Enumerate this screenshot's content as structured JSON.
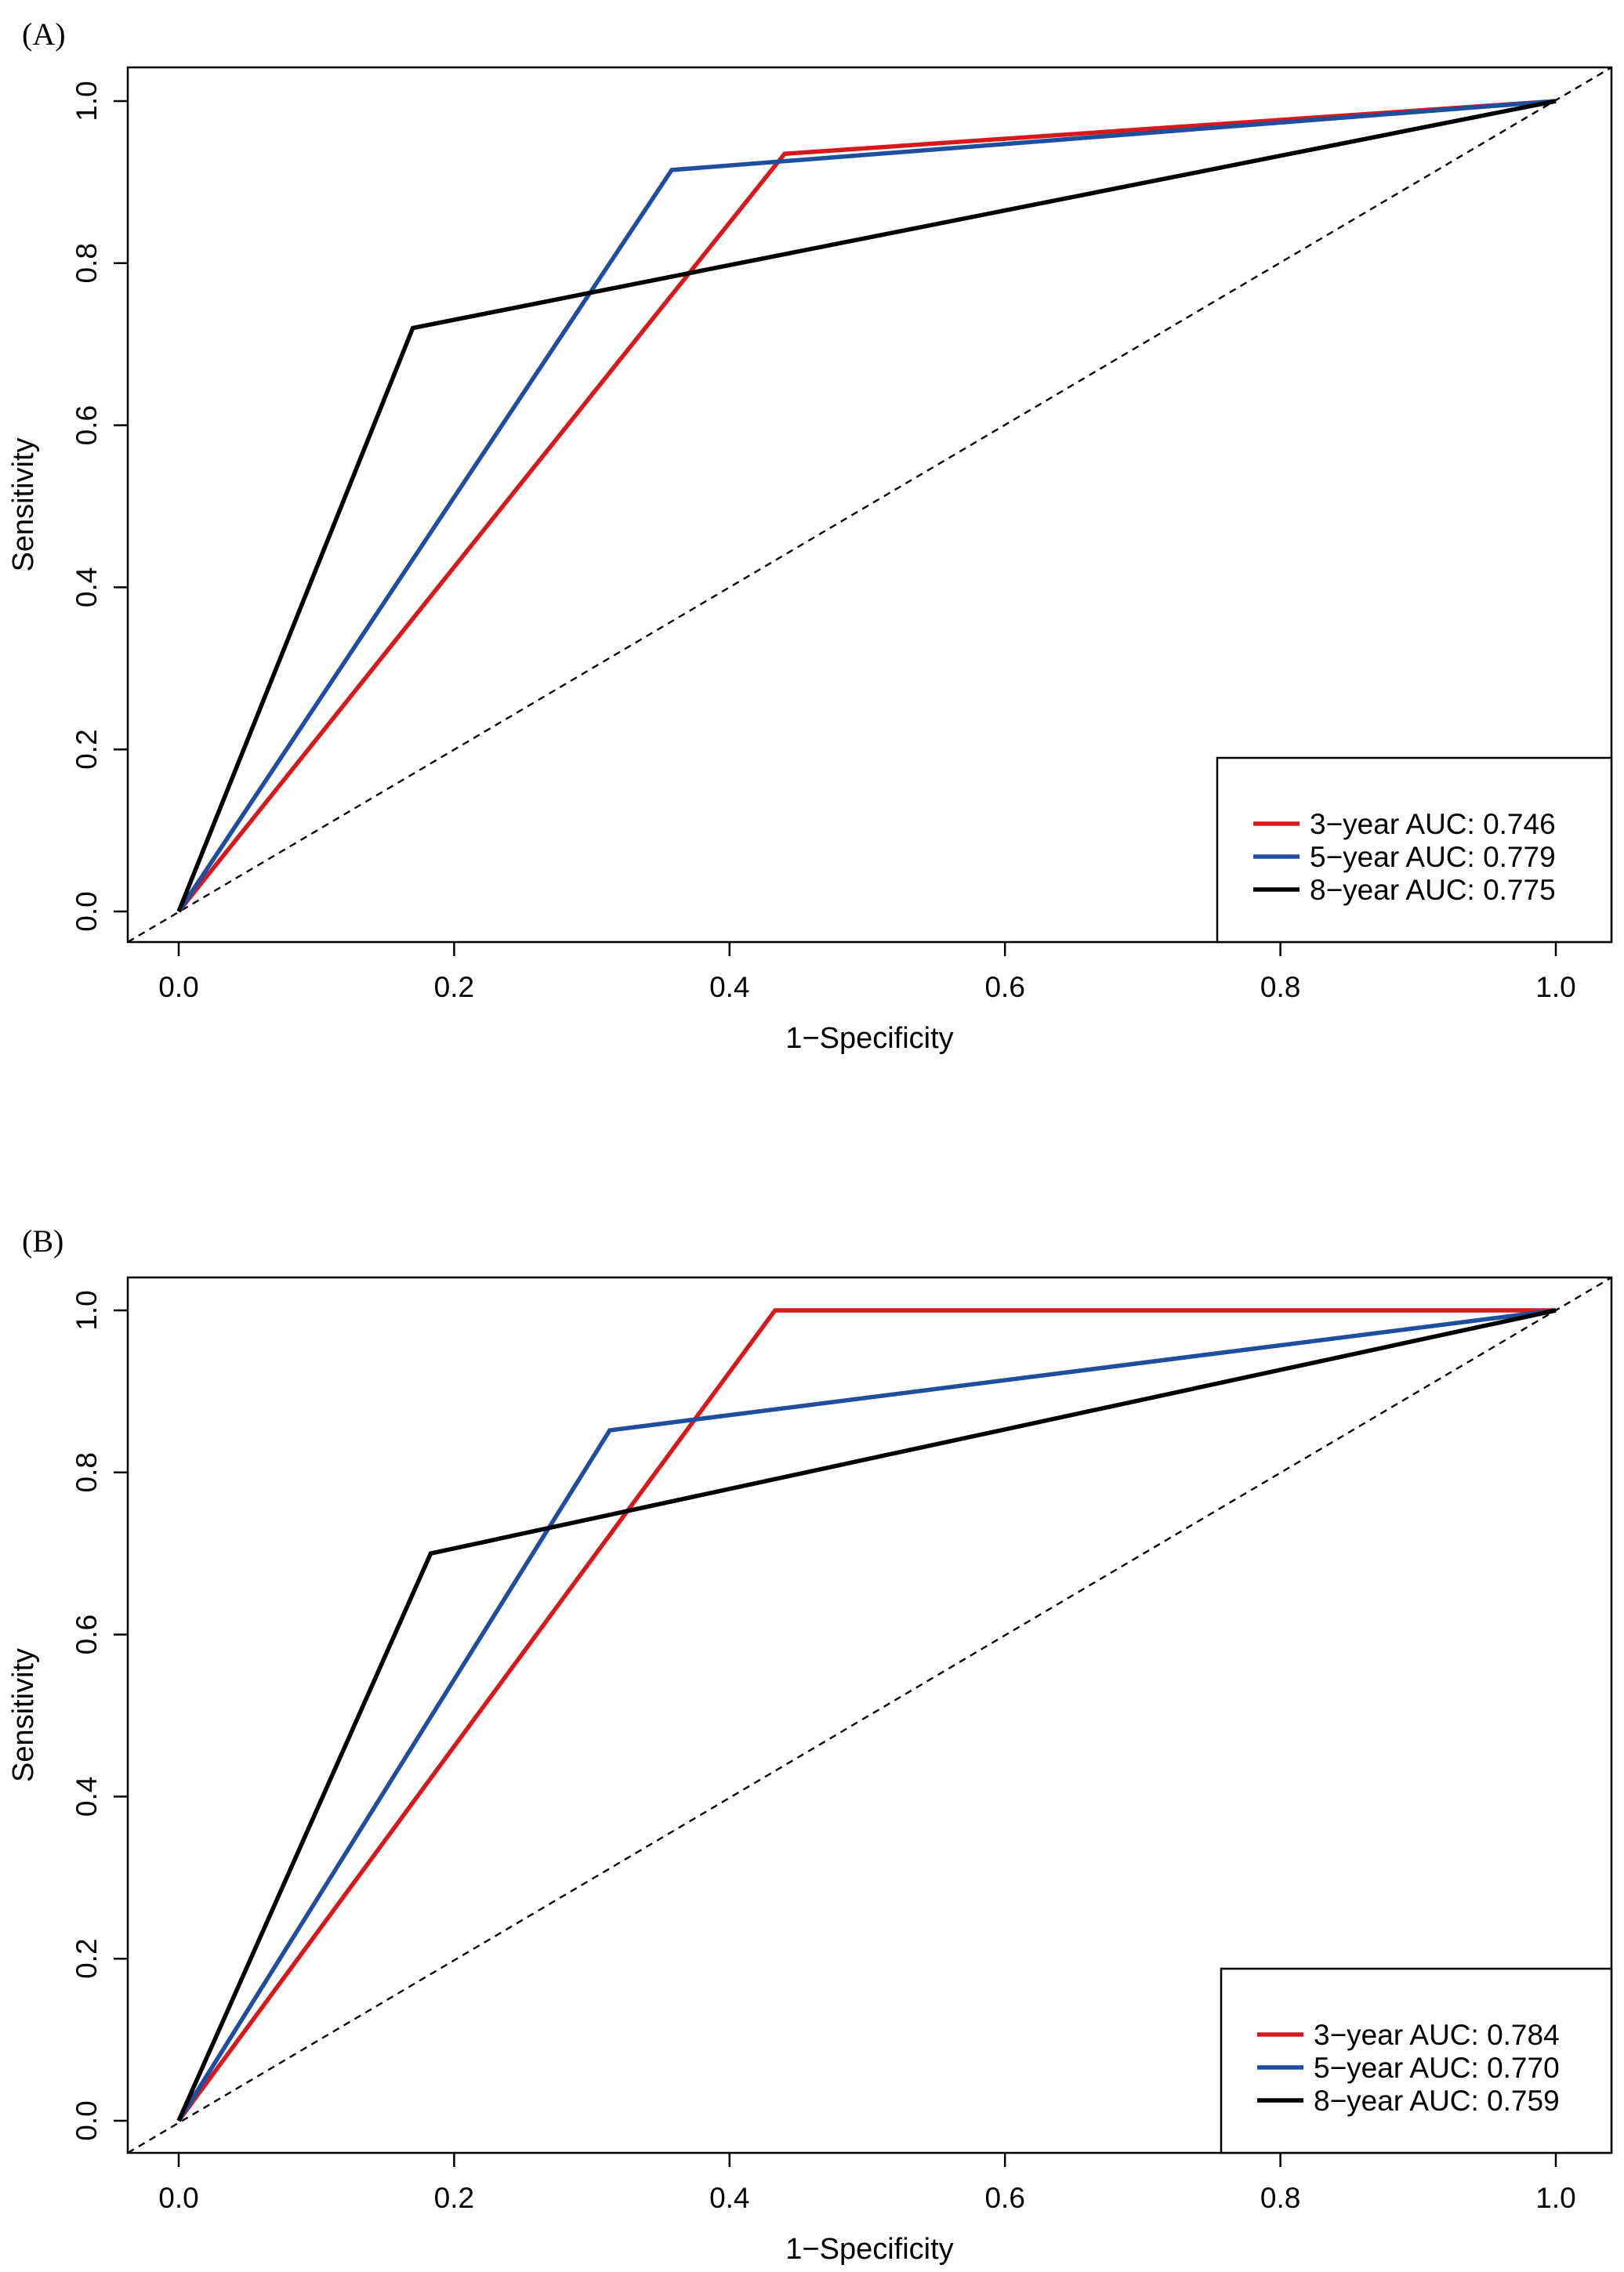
{
  "chart_data": [
    {
      "type": "line",
      "panel_label": "(A)",
      "title": "",
      "xlabel": "1−Specificity",
      "ylabel": "Sensitivity",
      "xlim": [
        0,
        1
      ],
      "ylim": [
        0,
        1
      ],
      "xticks": [
        "0.0",
        "0.2",
        "0.4",
        "0.6",
        "0.8",
        "1.0"
      ],
      "yticks": [
        "0.0",
        "0.2",
        "0.4",
        "0.6",
        "0.8",
        "1.0"
      ],
      "grid": false,
      "legend_position": "bottom-right",
      "reference_line": "diagonal dashed",
      "series": [
        {
          "name": "3−year AUC: 0.746",
          "color": "#d7191c",
          "x": [
            0,
            0.44,
            1
          ],
          "y": [
            0,
            0.935,
            1
          ]
        },
        {
          "name": "5−year AUC: 0.779",
          "color": "#1f4e9e",
          "x": [
            0,
            0.358,
            1
          ],
          "y": [
            0,
            0.915,
            1
          ]
        },
        {
          "name": "8−year AUC: 0.775",
          "color": "#000000",
          "x": [
            0,
            0.17,
            1
          ],
          "y": [
            0,
            0.72,
            1
          ]
        }
      ]
    },
    {
      "type": "line",
      "panel_label": "(B)",
      "title": "",
      "xlabel": "1−Specificity",
      "ylabel": "Sensitivity",
      "xlim": [
        0,
        1
      ],
      "ylim": [
        0,
        1
      ],
      "xticks": [
        "0.0",
        "0.2",
        "0.4",
        "0.6",
        "0.8",
        "1.0"
      ],
      "yticks": [
        "0.0",
        "0.2",
        "0.4",
        "0.6",
        "0.8",
        "1.0"
      ],
      "grid": false,
      "legend_position": "bottom-right",
      "reference_line": "diagonal dashed",
      "series": [
        {
          "name": "3−year AUC: 0.784",
          "color": "#d7191c",
          "x": [
            0,
            0.433,
            1
          ],
          "y": [
            0,
            1.0,
            1
          ]
        },
        {
          "name": "5−year AUC: 0.770",
          "color": "#1f4e9e",
          "x": [
            0,
            0.313,
            1
          ],
          "y": [
            0,
            0.852,
            1
          ]
        },
        {
          "name": "8−year AUC: 0.759",
          "color": "#000000",
          "x": [
            0,
            0.183,
            1
          ],
          "y": [
            0,
            0.7,
            1
          ]
        }
      ]
    }
  ]
}
